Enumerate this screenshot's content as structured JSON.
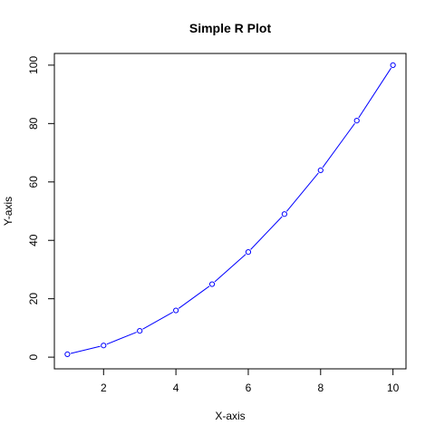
{
  "chart_data": {
    "type": "line",
    "title": "Simple R Plot",
    "xlabel": "X-axis",
    "ylabel": "Y-axis",
    "x": [
      1,
      2,
      3,
      4,
      5,
      6,
      7,
      8,
      9,
      10
    ],
    "series": [
      {
        "values": [
          1,
          4,
          9,
          16,
          25,
          36,
          49,
          64,
          81,
          100
        ],
        "color": "#0000ff",
        "marker": "open-circle",
        "line": "solid"
      }
    ],
    "xlim": [
      0.64,
      10.36
    ],
    "ylim": [
      -4,
      104
    ],
    "xticks": [
      2,
      4,
      6,
      8,
      10
    ],
    "xtick_labels": [
      "2",
      "4",
      "6",
      "8",
      "10"
    ],
    "yticks": [
      0,
      20,
      40,
      60,
      80,
      100
    ],
    "ytick_labels": [
      "0",
      "20",
      "40",
      "60",
      "80",
      "100"
    ],
    "grid": false,
    "legend": "none",
    "frame": "box"
  }
}
